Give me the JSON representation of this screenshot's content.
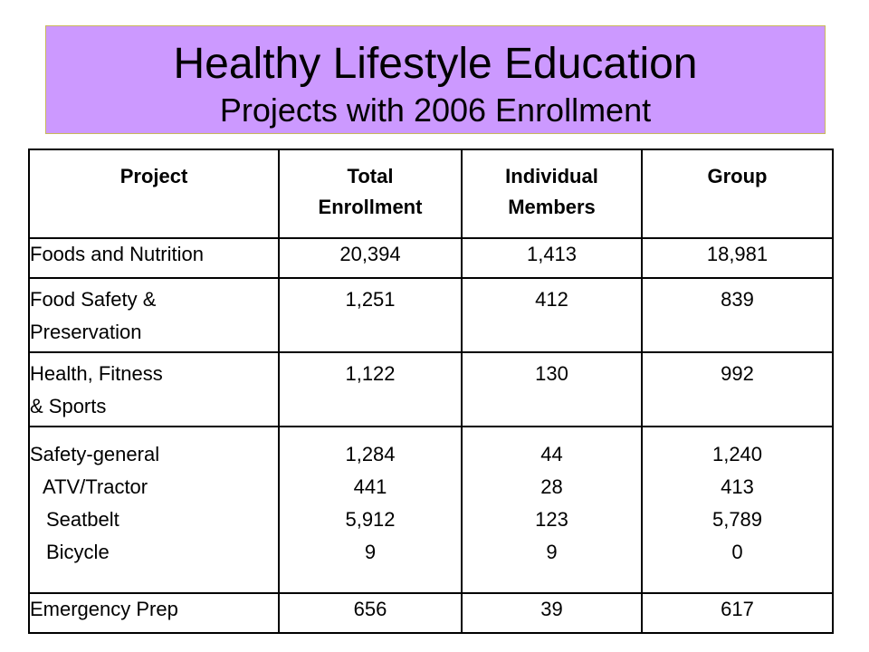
{
  "header": {
    "title": "Healthy Lifestyle Education",
    "subtitle": "Projects with 2006 Enrollment",
    "background_color": "#cc99ff"
  },
  "table": {
    "columns": [
      {
        "line1": "Project",
        "line2": ""
      },
      {
        "line1": "Total",
        "line2": "Enrollment"
      },
      {
        "line1": "Individual",
        "line2": "Members"
      },
      {
        "line1": "Group",
        "line2": ""
      }
    ],
    "rows": [
      {
        "project_lines": [
          "Foods and Nutrition"
        ],
        "total": [
          "20,394"
        ],
        "individual": [
          "1,413"
        ],
        "group": [
          "18,981"
        ]
      },
      {
        "project_lines": [
          "Food Safety &",
          "Preservation"
        ],
        "total": [
          "1,251"
        ],
        "individual": [
          "412"
        ],
        "group": [
          "839"
        ]
      },
      {
        "project_lines": [
          "Health, Fitness",
          "& Sports"
        ],
        "total": [
          "1,122"
        ],
        "individual": [
          "130"
        ],
        "group": [
          "992"
        ]
      },
      {
        "project_lines": [
          "Safety-general",
          "ATV/Tractor",
          "Seatbelt",
          "Bicycle"
        ],
        "total": [
          "1,284",
          "441",
          "5,912",
          "9"
        ],
        "individual": [
          "44",
          "28",
          "123",
          "9"
        ],
        "group": [
          "1,240",
          "413",
          "5,789",
          "0"
        ]
      },
      {
        "project_lines": [
          "Emergency Prep"
        ],
        "total": [
          "656"
        ],
        "individual": [
          "39"
        ],
        "group": [
          "617"
        ]
      }
    ]
  }
}
